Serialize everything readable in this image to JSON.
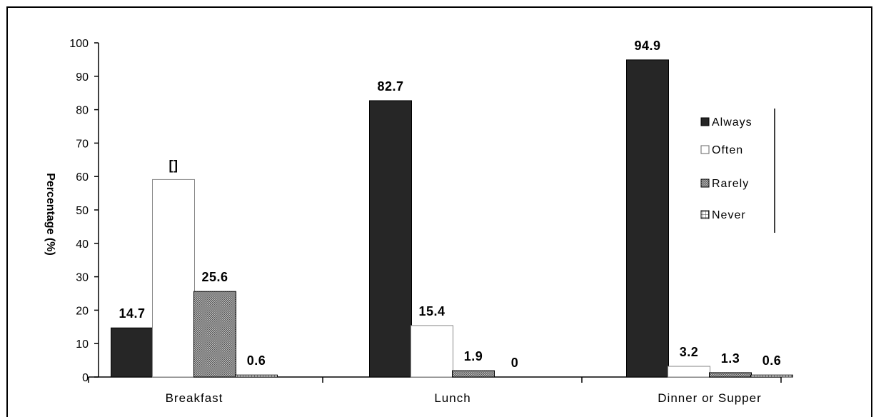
{
  "chart_data": {
    "type": "bar",
    "title": "",
    "xlabel": "",
    "ylabel": "Percentage (%)",
    "ylim": [
      0,
      100
    ],
    "yticks": [
      0,
      10,
      20,
      30,
      40,
      50,
      60,
      70,
      80,
      90,
      100
    ],
    "categories": [
      "Breakfast",
      "Lunch",
      "Dinner or Supper"
    ],
    "series": [
      {
        "name": "Always",
        "values": [
          14.7,
          82.7,
          94.9
        ],
        "labels": [
          "14.7",
          "82.7",
          "94.9"
        ],
        "fill": "#262626"
      },
      {
        "name": "Often",
        "values": [
          59.1,
          15.4,
          3.2
        ],
        "labels": [
          "[]",
          "15.4",
          "3.2"
        ],
        "fill": "#ffffff"
      },
      {
        "name": "Rarely",
        "values": [
          25.6,
          1.9,
          1.3
        ],
        "labels": [
          "25.6",
          "1.9",
          "1.3"
        ],
        "fill": "#8c8c8c"
      },
      {
        "name": "Never",
        "values": [
          0.6,
          0,
          0.6
        ],
        "labels": [
          "0.6",
          "0",
          "0.6"
        ],
        "fill": "#d9d9d9"
      }
    ],
    "legend_position": "right",
    "grid": false
  }
}
